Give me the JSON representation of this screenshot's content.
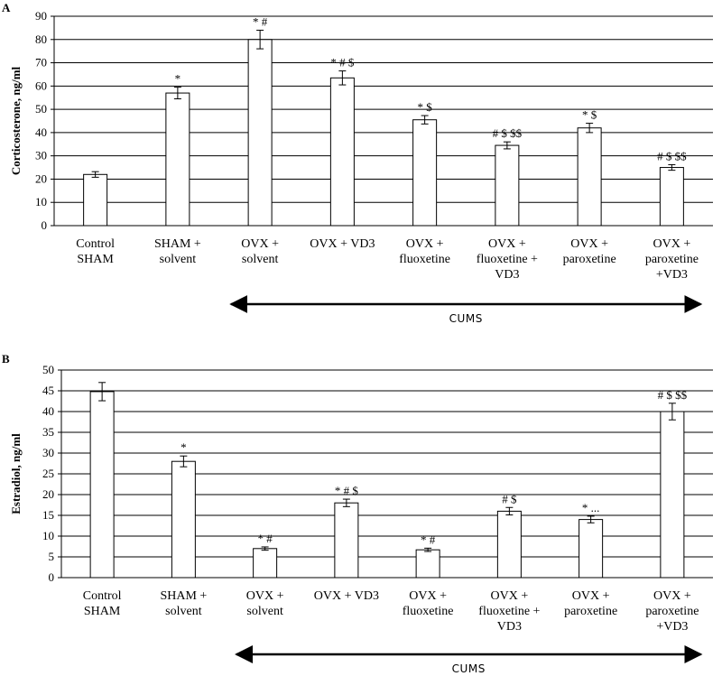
{
  "chart_data": [
    {
      "type": "bar",
      "panel": "A",
      "ylabel": "Corticosterone, ng/ml",
      "ylim": [
        0,
        90
      ],
      "yticks": [
        0,
        10,
        20,
        30,
        40,
        50,
        60,
        70,
        80,
        90
      ],
      "grid": true,
      "categories": [
        [
          "Control",
          "SHAM"
        ],
        [
          "SHAM +",
          "solvent"
        ],
        [
          "OVX +",
          "solvent"
        ],
        [
          "OVX + VD3"
        ],
        [
          "OVX +",
          "fluoxetine"
        ],
        [
          "OVX +",
          "fluoxetine +",
          "VD3"
        ],
        [
          "OVX +",
          "paroxetine"
        ],
        [
          "OVX +",
          "paroxetine",
          "+VD3"
        ]
      ],
      "values": [
        22,
        57,
        80,
        63.5,
        45.5,
        34.5,
        42,
        25
      ],
      "errors": [
        1.2,
        2.5,
        4,
        3,
        1.8,
        1.5,
        2,
        1.2
      ],
      "annotations": [
        "",
        "*",
        "* #",
        "* # $",
        "* $",
        "# $ $$",
        "* $",
        "# $ $$"
      ],
      "bracket_label": "CUMS",
      "bracket_range": [
        2,
        7
      ]
    },
    {
      "type": "bar",
      "panel": "B",
      "ylabel": "Estradiol, ng/ml",
      "ylim": [
        0,
        50
      ],
      "yticks": [
        0,
        5,
        10,
        15,
        20,
        25,
        30,
        35,
        40,
        45,
        50
      ],
      "grid": true,
      "categories": [
        [
          "Control",
          "SHAM"
        ],
        [
          "SHAM +",
          "solvent"
        ],
        [
          "OVX +",
          "solvent"
        ],
        [
          "OVX + VD3"
        ],
        [
          "OVX +",
          "fluoxetine"
        ],
        [
          "OVX +",
          "fluoxetine +",
          "VD3"
        ],
        [
          "OVX +",
          "paroxetine"
        ],
        [
          "OVX +",
          "paroxetine",
          "+VD3"
        ]
      ],
      "values": [
        44.8,
        28,
        7,
        18,
        6.7,
        16,
        14,
        40
      ],
      "errors": [
        2.2,
        1.3,
        0.4,
        0.9,
        0.4,
        0.9,
        0.8,
        2
      ],
      "annotations": [
        "",
        "*",
        "* #",
        "* # $",
        "* #",
        "# $",
        "* ...",
        "# $ $$"
      ],
      "bracket_label": "CUMS",
      "bracket_range": [
        2,
        7
      ]
    }
  ]
}
